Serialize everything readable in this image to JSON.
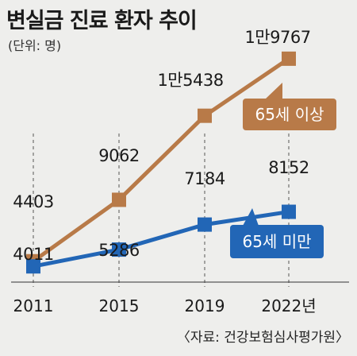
{
  "title": "변실금 진료 환자 추이",
  "unit_note": "(단위: 명)",
  "source": "〈자료: 건강보험심사평가원〉",
  "colors": {
    "over65": "#b87a48",
    "under65": "#2266b6",
    "background": "#eeeeec",
    "grid": "#555555"
  },
  "chart_data": {
    "type": "line",
    "categories": [
      "2011",
      "2015",
      "2019",
      "2022년"
    ],
    "series": [
      {
        "name": "65세 이상",
        "values": [
          4403,
          9062,
          15438,
          19767
        ],
        "labels": [
          "4403",
          "9062",
          "1만5438",
          "1만9767"
        ],
        "color": "#b87a48"
      },
      {
        "name": "65세 미만",
        "values": [
          4011,
          5286,
          7184,
          8152
        ],
        "labels": [
          "4011",
          "5286",
          "7184",
          "8152"
        ],
        "color": "#2266b6"
      }
    ],
    "legend_placement": "callouts next to lines",
    "grid": false
  }
}
